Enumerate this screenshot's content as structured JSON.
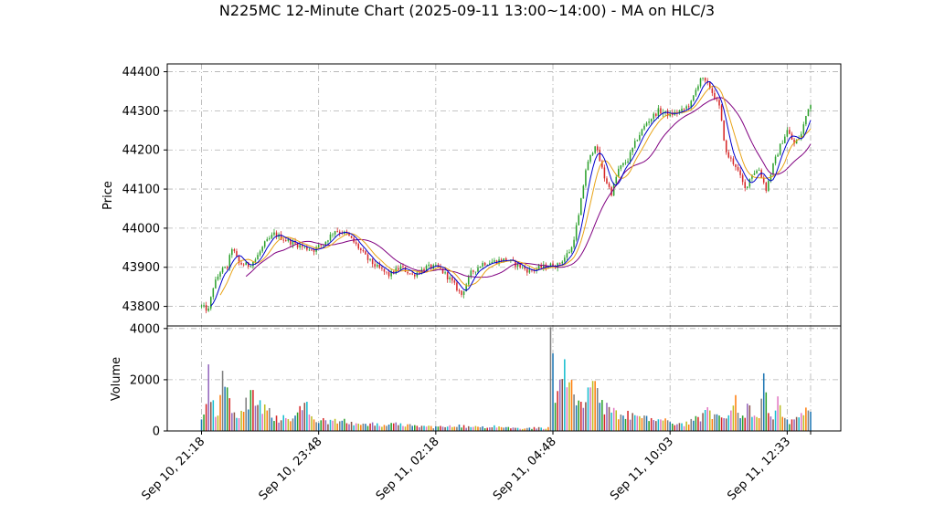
{
  "chart_data": {
    "type": "candlestick",
    "title": "N225MC 12-Minute Chart (2025-09-11 13:00~14:00) - MA on HLC/3",
    "price_panel": {
      "ylabel": "Price",
      "ylim": [
        43750,
        44420
      ],
      "yticks": [
        43800,
        43900,
        44000,
        44100,
        44200,
        44300,
        44400
      ],
      "grid": true
    },
    "volume_panel": {
      "ylabel": "Volume",
      "ylim": [
        0,
        4100
      ],
      "yticks": [
        0,
        2000,
        4000
      ],
      "grid": true
    },
    "x_axis": {
      "tick_labels": [
        "Sep 10, 21:18",
        "Sep 10, 23:48",
        "Sep 11, 02:18",
        "Sep 11, 04:48",
        "Sep 11, 10:03",
        "Sep 11, 12:33"
      ],
      "tick_bar_index": [
        0,
        50,
        100,
        150,
        200,
        250
      ]
    },
    "colors": {
      "up": "#2ca02c",
      "down": "#d62728",
      "ma_short": "#0000cc",
      "ma_mid": "#e8a317",
      "ma_long": "#800080",
      "grid": "#b0b0b0"
    },
    "price_anchors": [
      [
        0,
        43800
      ],
      [
        3,
        43790
      ],
      [
        5,
        43850
      ],
      [
        8,
        43890
      ],
      [
        11,
        43900
      ],
      [
        13,
        43950
      ],
      [
        16,
        43910
      ],
      [
        20,
        43905
      ],
      [
        23,
        43920
      ],
      [
        27,
        43960
      ],
      [
        31,
        43985
      ],
      [
        36,
        43970
      ],
      [
        40,
        43960
      ],
      [
        44,
        43950
      ],
      [
        48,
        43945
      ],
      [
        52,
        43960
      ],
      [
        57,
        43995
      ],
      [
        62,
        43985
      ],
      [
        67,
        43950
      ],
      [
        71,
        43920
      ],
      [
        75,
        43900
      ],
      [
        80,
        43880
      ],
      [
        85,
        43900
      ],
      [
        90,
        43880
      ],
      [
        96,
        43900
      ],
      [
        101,
        43900
      ],
      [
        106,
        43870
      ],
      [
        111,
        43830
      ],
      [
        115,
        43885
      ],
      [
        120,
        43910
      ],
      [
        125,
        43915
      ],
      [
        130,
        43920
      ],
      [
        135,
        43905
      ],
      [
        140,
        43890
      ],
      [
        145,
        43900
      ],
      [
        149,
        43905
      ],
      [
        152,
        43905
      ],
      [
        155,
        43925
      ],
      [
        158,
        43950
      ],
      [
        161,
        44030
      ],
      [
        164,
        44150
      ],
      [
        168,
        44215
      ],
      [
        172,
        44130
      ],
      [
        175,
        44090
      ],
      [
        178,
        44150
      ],
      [
        182,
        44175
      ],
      [
        186,
        44230
      ],
      [
        190,
        44270
      ],
      [
        195,
        44300
      ],
      [
        200,
        44290
      ],
      [
        205,
        44300
      ],
      [
        209,
        44320
      ],
      [
        213,
        44385
      ],
      [
        217,
        44360
      ],
      [
        221,
        44310
      ],
      [
        224,
        44190
      ],
      [
        228,
        44160
      ],
      [
        232,
        44100
      ],
      [
        235,
        44140
      ],
      [
        238,
        44150
      ],
      [
        241,
        44100
      ],
      [
        244,
        44160
      ],
      [
        247,
        44210
      ],
      [
        250,
        44250
      ],
      [
        253,
        44215
      ],
      [
        256,
        44240
      ],
      [
        259,
        44310
      ],
      [
        260,
        44315
      ]
    ],
    "volume_anchors": [
      [
        0,
        450
      ],
      [
        3,
        2600
      ],
      [
        5,
        1200
      ],
      [
        7,
        600
      ],
      [
        9,
        2350
      ],
      [
        11,
        1700
      ],
      [
        13,
        700
      ],
      [
        16,
        500
      ],
      [
        19,
        1300
      ],
      [
        22,
        1600
      ],
      [
        25,
        1200
      ],
      [
        28,
        800
      ],
      [
        32,
        600
      ],
      [
        36,
        500
      ],
      [
        40,
        600
      ],
      [
        44,
        1100
      ],
      [
        48,
        450
      ],
      [
        52,
        500
      ],
      [
        56,
        400
      ],
      [
        60,
        400
      ],
      [
        66,
        300
      ],
      [
        70,
        280
      ],
      [
        75,
        300
      ],
      [
        80,
        250
      ],
      [
        85,
        300
      ],
      [
        90,
        200
      ],
      [
        95,
        200
      ],
      [
        100,
        180
      ],
      [
        105,
        170
      ],
      [
        110,
        250
      ],
      [
        115,
        150
      ],
      [
        120,
        180
      ],
      [
        125,
        220
      ],
      [
        130,
        150
      ],
      [
        135,
        120
      ],
      [
        140,
        130
      ],
      [
        145,
        130
      ],
      [
        148,
        150
      ],
      [
        149,
        4050
      ],
      [
        151,
        1100
      ],
      [
        153,
        2000
      ],
      [
        155,
        2800
      ],
      [
        157,
        1900
      ],
      [
        160,
        1000
      ],
      [
        163,
        900
      ],
      [
        166,
        1700
      ],
      [
        168,
        1950
      ],
      [
        170,
        1100
      ],
      [
        173,
        1100
      ],
      [
        176,
        900
      ],
      [
        180,
        600
      ],
      [
        184,
        700
      ],
      [
        188,
        500
      ],
      [
        192,
        500
      ],
      [
        196,
        450
      ],
      [
        200,
        350
      ],
      [
        205,
        300
      ],
      [
        210,
        400
      ],
      [
        214,
        700
      ],
      [
        217,
        800
      ],
      [
        220,
        650
      ],
      [
        223,
        500
      ],
      [
        226,
        800
      ],
      [
        228,
        1400
      ],
      [
        231,
        600
      ],
      [
        234,
        1000
      ],
      [
        236,
        600
      ],
      [
        238,
        500
      ],
      [
        240,
        2250
      ],
      [
        242,
        700
      ],
      [
        244,
        450
      ],
      [
        246,
        1350
      ],
      [
        248,
        550
      ],
      [
        250,
        450
      ],
      [
        253,
        450
      ],
      [
        256,
        700
      ],
      [
        259,
        800
      ],
      [
        260,
        750
      ]
    ],
    "ma_periods": {
      "short": 5,
      "mid": 9,
      "long": 20
    },
    "bar_count": 261
  }
}
